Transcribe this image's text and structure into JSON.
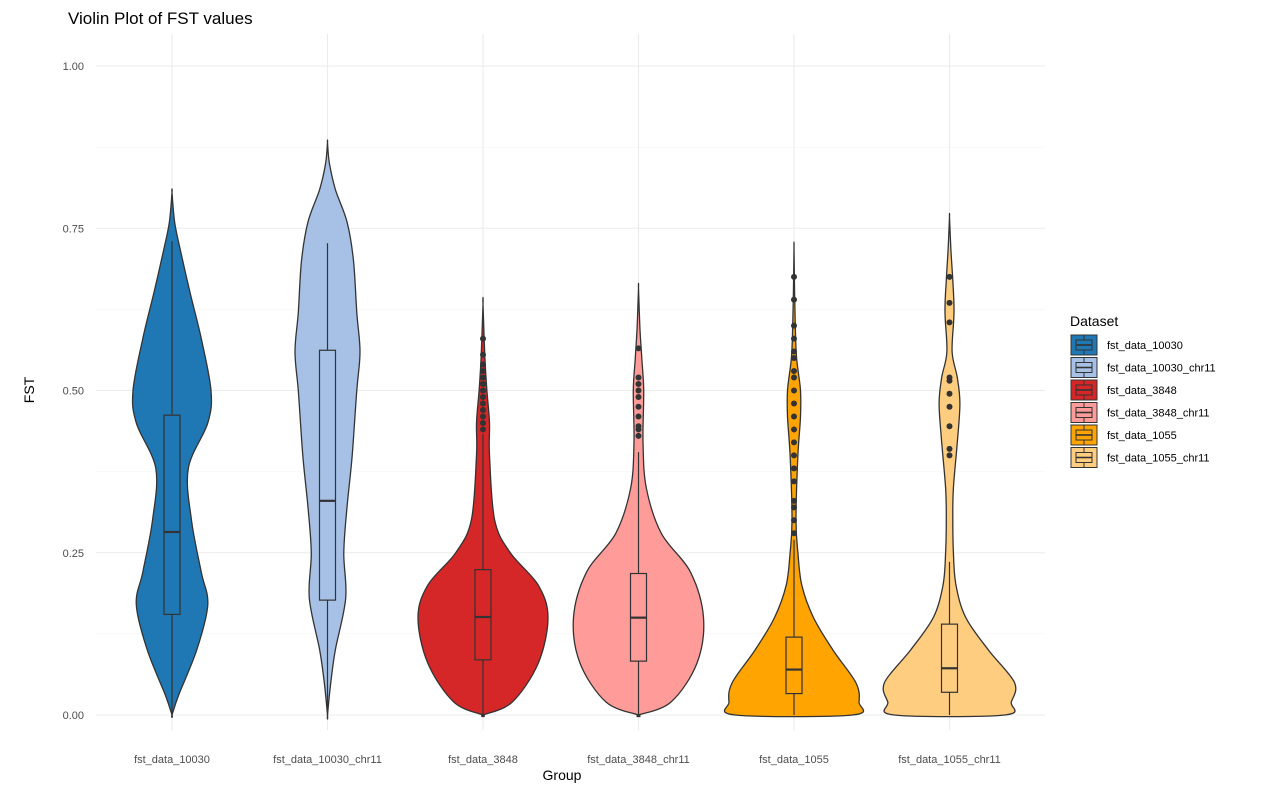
{
  "chart_data": {
    "type": "violin",
    "title": "Violin Plot of FST values",
    "xlabel": "Group",
    "ylabel": "FST",
    "ylim": [
      0,
      1.05
    ],
    "yticks": [
      0,
      0.25,
      0.5,
      0.75,
      1.0
    ],
    "ytick_labels": [
      "0.00",
      "0.25",
      "0.50",
      "0.75",
      "1.00"
    ],
    "grid": true,
    "legend": {
      "title": "Dataset",
      "position": "right"
    },
    "categories": [
      "fst_data_10030",
      "fst_data_10030_chr11",
      "fst_data_3848",
      "fst_data_3848_chr11",
      "fst_data_1055",
      "fst_data_1055_chr11"
    ],
    "series": [
      {
        "name": "fst_data_10030",
        "color": "#1f78b4",
        "violin_range": [
          0.0,
          0.805
        ],
        "density_profile": [
          [
            0.0,
            0.0
          ],
          [
            0.03,
            0.1
          ],
          [
            0.1,
            0.38
          ],
          [
            0.17,
            0.55
          ],
          [
            0.22,
            0.45
          ],
          [
            0.3,
            0.3
          ],
          [
            0.38,
            0.25
          ],
          [
            0.45,
            0.55
          ],
          [
            0.5,
            0.6
          ],
          [
            0.58,
            0.45
          ],
          [
            0.65,
            0.28
          ],
          [
            0.72,
            0.12
          ],
          [
            0.76,
            0.04
          ],
          [
            0.805,
            0.0
          ]
        ],
        "box": {
          "q1": 0.155,
          "median": 0.282,
          "q3": 0.462,
          "whisker_low": 0.0,
          "whisker_high": 0.73
        },
        "outliers": []
      },
      {
        "name": "fst_data_10030_chr11",
        "color": "#a6c1e5",
        "violin_range": [
          0.0,
          0.882
        ],
        "density_profile": [
          [
            0.0,
            0.0
          ],
          [
            0.05,
            0.05
          ],
          [
            0.1,
            0.12
          ],
          [
            0.18,
            0.28
          ],
          [
            0.25,
            0.25
          ],
          [
            0.32,
            0.3
          ],
          [
            0.4,
            0.38
          ],
          [
            0.5,
            0.45
          ],
          [
            0.56,
            0.5
          ],
          [
            0.62,
            0.45
          ],
          [
            0.7,
            0.4
          ],
          [
            0.76,
            0.3
          ],
          [
            0.81,
            0.12
          ],
          [
            0.85,
            0.03
          ],
          [
            0.882,
            0.0
          ]
        ],
        "box": {
          "q1": 0.177,
          "median": 0.33,
          "q3": 0.562,
          "whisker_low": 0.0,
          "whisker_high": 0.727
        },
        "outliers": []
      },
      {
        "name": "fst_data_3848",
        "color": "#d62728",
        "violin_range": [
          0.0,
          0.633
        ],
        "density_profile": [
          [
            0.0,
            0.0
          ],
          [
            0.02,
            0.45
          ],
          [
            0.08,
            0.85
          ],
          [
            0.15,
            1.0
          ],
          [
            0.2,
            0.85
          ],
          [
            0.25,
            0.42
          ],
          [
            0.3,
            0.18
          ],
          [
            0.4,
            0.1
          ],
          [
            0.45,
            0.1
          ],
          [
            0.5,
            0.06
          ],
          [
            0.55,
            0.03
          ],
          [
            0.633,
            0.0
          ]
        ],
        "box": {
          "q1": 0.085,
          "median": 0.151,
          "q3": 0.224,
          "whisker_low": 0.0,
          "whisker_high": 0.433
        },
        "outliers": [
          0.44,
          0.45,
          0.46,
          0.47,
          0.48,
          0.49,
          0.5,
          0.51,
          0.52,
          0.53,
          0.54,
          0.555,
          0.58
        ]
      },
      {
        "name": "fst_data_3848_chr11",
        "color": "#ff9c99",
        "violin_range": [
          0.0,
          0.658
        ],
        "density_profile": [
          [
            0.0,
            0.0
          ],
          [
            0.02,
            0.5
          ],
          [
            0.08,
            0.9
          ],
          [
            0.15,
            1.0
          ],
          [
            0.22,
            0.8
          ],
          [
            0.28,
            0.35
          ],
          [
            0.35,
            0.12
          ],
          [
            0.42,
            0.07
          ],
          [
            0.5,
            0.08
          ],
          [
            0.55,
            0.05
          ],
          [
            0.6,
            0.02
          ],
          [
            0.658,
            0.0
          ]
        ],
        "box": {
          "q1": 0.083,
          "median": 0.15,
          "q3": 0.218,
          "whisker_low": 0.0,
          "whisker_high": 0.405
        },
        "outliers": [
          0.43,
          0.44,
          0.445,
          0.46,
          0.475,
          0.49,
          0.5,
          0.51,
          0.52,
          0.565
        ]
      },
      {
        "name": "fst_data_1055",
        "color": "#ffa400",
        "violin_range": [
          0.0,
          0.72
        ],
        "density_profile": [
          [
            0.0,
            0.9
          ],
          [
            0.02,
            1.0
          ],
          [
            0.05,
            0.95
          ],
          [
            0.1,
            0.6
          ],
          [
            0.15,
            0.3
          ],
          [
            0.2,
            0.12
          ],
          [
            0.25,
            0.06
          ],
          [
            0.3,
            0.03
          ],
          [
            0.4,
            0.06
          ],
          [
            0.46,
            0.1
          ],
          [
            0.5,
            0.1
          ],
          [
            0.55,
            0.04
          ],
          [
            0.6,
            0.02
          ],
          [
            0.65,
            0.01
          ],
          [
            0.72,
            0.0
          ]
        ],
        "box": {
          "q1": 0.033,
          "median": 0.07,
          "q3": 0.12,
          "whisker_low": 0.0,
          "whisker_high": 0.27
        },
        "outliers": [
          0.28,
          0.3,
          0.32,
          0.33,
          0.36,
          0.38,
          0.4,
          0.42,
          0.44,
          0.46,
          0.48,
          0.5,
          0.52,
          0.53,
          0.55,
          0.56,
          0.58,
          0.6,
          0.64,
          0.675
        ]
      },
      {
        "name": "fst_data_1055_chr11",
        "color": "#ffcd7f",
        "violin_range": [
          0.0,
          0.767
        ],
        "density_profile": [
          [
            0.0,
            0.85
          ],
          [
            0.02,
            0.95
          ],
          [
            0.05,
            1.0
          ],
          [
            0.1,
            0.6
          ],
          [
            0.15,
            0.25
          ],
          [
            0.2,
            0.1
          ],
          [
            0.25,
            0.06
          ],
          [
            0.3,
            0.05
          ],
          [
            0.35,
            0.06
          ],
          [
            0.42,
            0.12
          ],
          [
            0.48,
            0.16
          ],
          [
            0.52,
            0.12
          ],
          [
            0.56,
            0.04
          ],
          [
            0.62,
            0.07
          ],
          [
            0.67,
            0.05
          ],
          [
            0.72,
            0.02
          ],
          [
            0.767,
            0.0
          ]
        ],
        "box": {
          "q1": 0.035,
          "median": 0.072,
          "q3": 0.14,
          "whisker_low": 0.0,
          "whisker_high": 0.236
        },
        "outliers": [
          0.4,
          0.41,
          0.445,
          0.475,
          0.495,
          0.515,
          0.52,
          0.605,
          0.635,
          0.675
        ]
      }
    ]
  }
}
